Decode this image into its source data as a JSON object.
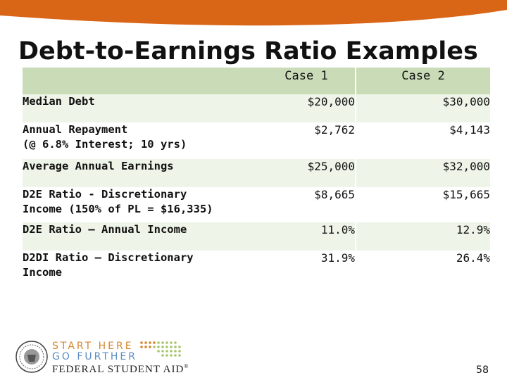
{
  "slide": {
    "title": "Debt-to-Earnings Ratio Examples",
    "page_number": "58",
    "colors": {
      "banner": "#d96517",
      "header_fill": "#c9dcb7",
      "row_band": "#eef4e8"
    }
  },
  "table": {
    "columns": [
      "",
      "Case 1",
      "Case 2"
    ],
    "rows": [
      {
        "label": "Median Debt",
        "case1": "$20,000",
        "case2": "$30,000"
      },
      {
        "label": "Annual Repayment\n(@ 6.8% Interest; 10 yrs)",
        "case1": "$2,762",
        "case2": "$4,143"
      },
      {
        "label": "Average Annual Earnings",
        "case1": "$25,000",
        "case2": "$32,000"
      },
      {
        "label": "D2E Ratio - Discretionary\nIncome (150% of PL = $16,335)",
        "case1": "$8,665",
        "case2": "$15,665"
      },
      {
        "label": "D2E Ratio – Annual Income",
        "case1": "11.0%",
        "case2": "12.9%"
      },
      {
        "label": "D2DI Ratio – Discretionary\nIncome",
        "case1": "31.9%",
        "case2": "26.4%"
      }
    ]
  },
  "logo": {
    "line1": "START HERE",
    "line2": "GO FURTHER",
    "line3": "FEDERAL STUDENT AID",
    "mark": "®",
    "icon": "seal-icon"
  }
}
